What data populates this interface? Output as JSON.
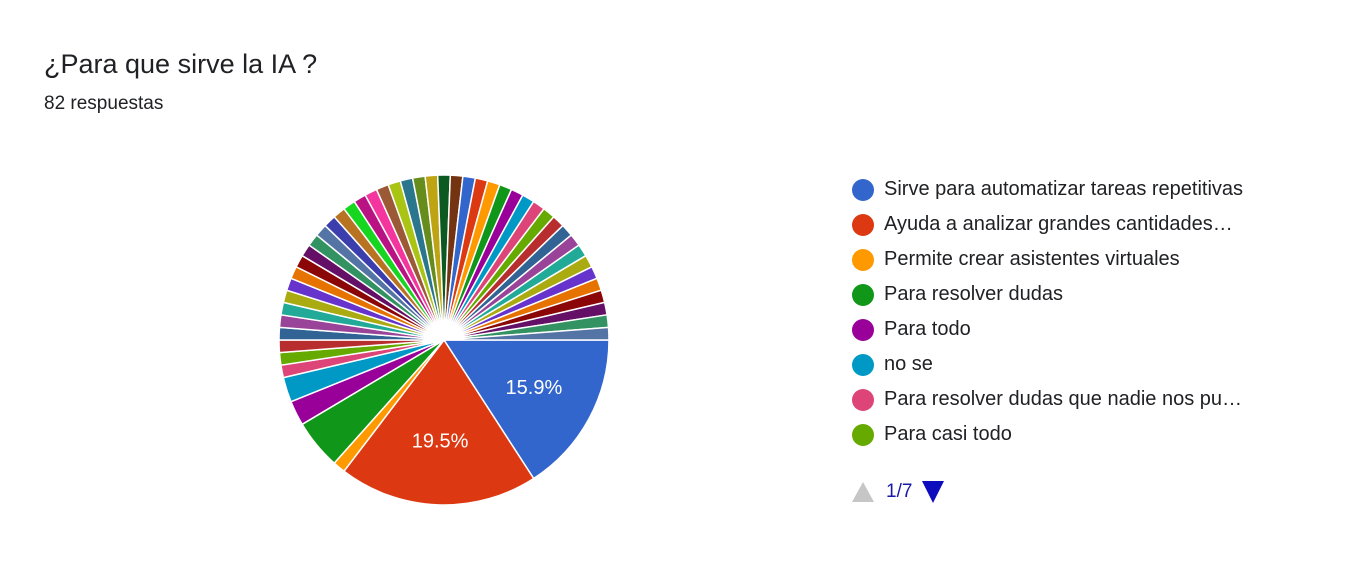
{
  "header": {
    "title": "¿Para que sirve la IA ?",
    "subtitle": "82 respuestas"
  },
  "chart_data": {
    "type": "pie",
    "title": "¿Para que sirve la IA ?",
    "total_responses": 82,
    "start": "3 o'clock, clockwise",
    "slices": [
      {
        "label": "Sirve para automatizar tareas repetitivas",
        "value": 13,
        "percent_label": "15.9%",
        "color": "#3366cc"
      },
      {
        "label": "Ayuda a analizar grandes cantidades…",
        "value": 16,
        "percent_label": "19.5%",
        "color": "#dc3912"
      },
      {
        "label": "Permite crear asistentes virtuales",
        "value": 1,
        "color": "#ff9900"
      },
      {
        "label": "Para resolver dudas",
        "value": 4,
        "color": "#109618"
      },
      {
        "label": "Para todo",
        "value": 2,
        "color": "#990099"
      },
      {
        "label": "no se",
        "value": 2,
        "color": "#0099c6"
      },
      {
        "label": "Para resolver dudas que nadie nos pu…",
        "value": 1,
        "color": "#dd4477"
      },
      {
        "label": "Para casi todo",
        "value": 1,
        "color": "#66aa00"
      },
      {
        "value": 1,
        "color": "#b82e2e"
      },
      {
        "value": 1,
        "color": "#316395"
      },
      {
        "value": 1,
        "color": "#994499"
      },
      {
        "value": 1,
        "color": "#22aa99"
      },
      {
        "value": 1,
        "color": "#aaaa11"
      },
      {
        "value": 1,
        "color": "#6633cc"
      },
      {
        "value": 1,
        "color": "#e67300"
      },
      {
        "value": 1,
        "color": "#8b0707"
      },
      {
        "value": 1,
        "color": "#651067"
      },
      {
        "value": 1,
        "color": "#329262"
      },
      {
        "value": 1,
        "color": "#5574a6"
      },
      {
        "value": 1,
        "color": "#3b3eac"
      },
      {
        "value": 1,
        "color": "#b77322"
      },
      {
        "value": 1,
        "color": "#16d620"
      },
      {
        "value": 1,
        "color": "#b91383"
      },
      {
        "value": 1,
        "color": "#f4359e"
      },
      {
        "value": 1,
        "color": "#9c5935"
      },
      {
        "value": 1,
        "color": "#a9c413"
      },
      {
        "value": 1,
        "color": "#2a778d"
      },
      {
        "value": 1,
        "color": "#668d1c"
      },
      {
        "value": 1,
        "color": "#bea413"
      },
      {
        "value": 1,
        "color": "#0c5922"
      },
      {
        "value": 1,
        "color": "#743411"
      },
      {
        "value": 1,
        "color": "#3366cc"
      },
      {
        "value": 1,
        "color": "#dc3912"
      },
      {
        "value": 1,
        "color": "#ff9900"
      },
      {
        "value": 1,
        "color": "#109618"
      },
      {
        "value": 1,
        "color": "#990099"
      },
      {
        "value": 1,
        "color": "#0099c6"
      },
      {
        "value": 1,
        "color": "#dd4477"
      },
      {
        "value": 1,
        "color": "#66aa00"
      },
      {
        "value": 1,
        "color": "#b82e2e"
      },
      {
        "value": 1,
        "color": "#316395"
      },
      {
        "value": 1,
        "color": "#994499"
      },
      {
        "value": 1,
        "color": "#22aa99"
      },
      {
        "value": 1,
        "color": "#aaaa11"
      },
      {
        "value": 1,
        "color": "#6633cc"
      },
      {
        "value": 1,
        "color": "#e67300"
      },
      {
        "value": 1,
        "color": "#8b0707"
      },
      {
        "value": 1,
        "color": "#651067"
      },
      {
        "value": 1,
        "color": "#329262"
      },
      {
        "value": 1,
        "color": "#5574a6"
      }
    ]
  },
  "legend": {
    "items": [
      {
        "label": "Sirve para automatizar tareas repetitivas",
        "color": "#3366cc"
      },
      {
        "label": "Ayuda a analizar grandes cantidades…",
        "color": "#dc3912"
      },
      {
        "label": "Permite crear asistentes virtuales",
        "color": "#ff9900"
      },
      {
        "label": "Para resolver dudas",
        "color": "#109618"
      },
      {
        "label": "Para todo",
        "color": "#990099"
      },
      {
        "label": "no se",
        "color": "#0099c6"
      },
      {
        "label": "Para resolver dudas que nadie nos pu…",
        "color": "#dd4477"
      },
      {
        "label": "Para casi todo",
        "color": "#66aa00"
      }
    ]
  },
  "pager": {
    "label": "1/7",
    "prev_icon": "triangle-up-icon",
    "next_icon": "triangle-down-icon",
    "prev_color": "#c6c6c6",
    "next_color": "#0d0dbd"
  }
}
